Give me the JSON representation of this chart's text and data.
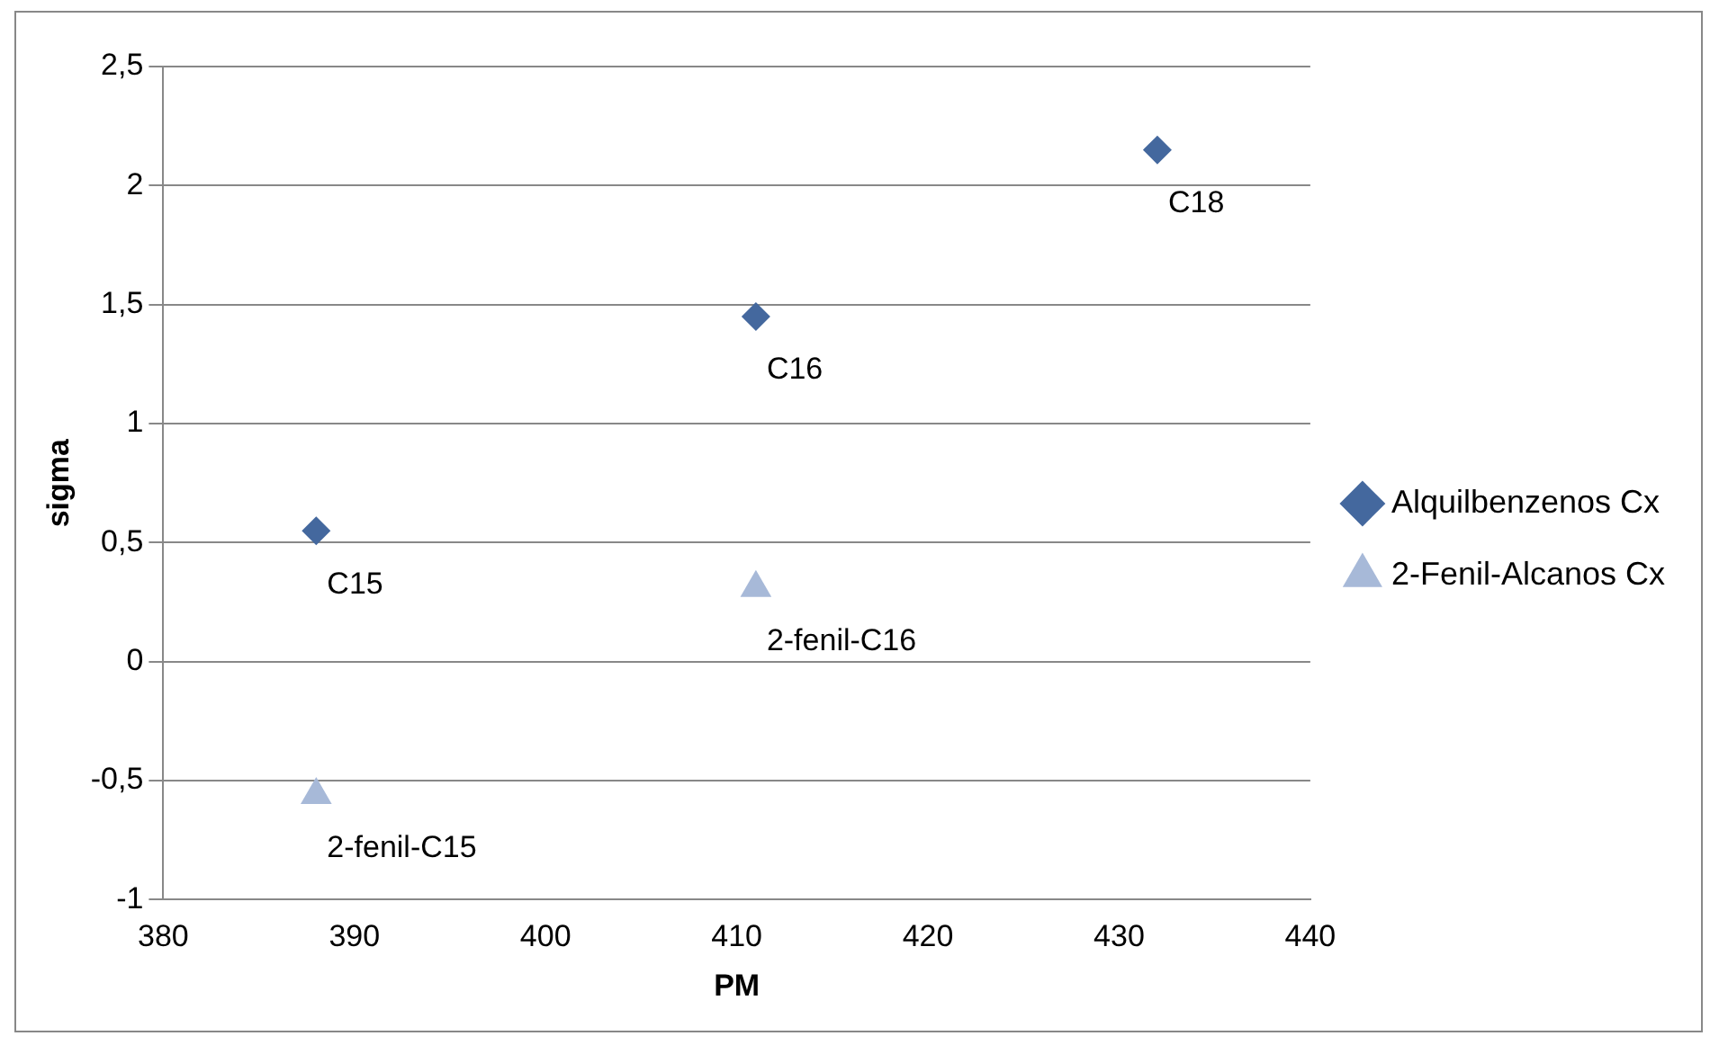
{
  "chart_data": {
    "type": "scatter",
    "xlabel": "PM",
    "ylabel": "sigma",
    "series": [
      {
        "name": "Alquilbenzenos Cx",
        "color": "#44689e",
        "marker": "diamond",
        "x": [
          388,
          411,
          432
        ],
        "values": [
          0.55,
          1.45,
          2.15
        ]
      },
      {
        "name": "2-Fenil-Alcanos Cx",
        "color": "#a7b9d8",
        "marker": "triangle",
        "x": [
          388,
          411
        ],
        "values": [
          -0.56,
          0.31
        ]
      }
    ],
    "xlim": [
      380,
      440
    ],
    "xticks": [
      380,
      390,
      400,
      410,
      420,
      430,
      440
    ],
    "ylim": [
      -1,
      2.5
    ],
    "yticks": [
      -1,
      {
        "value": -0.5,
        "label": "-0,5"
      },
      0,
      {
        "value": 0.5,
        "label": "0,5"
      },
      1,
      {
        "value": 1.5,
        "label": "1,5"
      },
      2,
      {
        "value": 2.5,
        "label": "2,5"
      }
    ],
    "grid": "y",
    "legend": "right",
    "annotations": [
      {
        "text": "C15",
        "x": 388,
        "y": 0.55
      },
      {
        "text": "C16",
        "x": 411,
        "y": 1.45
      },
      {
        "text": "C18",
        "x": 432,
        "y": 2.15
      },
      {
        "text": "2-fenil-C16",
        "x": 411,
        "y": 0.31
      },
      {
        "text": "2-fenil-C15",
        "x": 388,
        "y": -0.56
      }
    ]
  }
}
